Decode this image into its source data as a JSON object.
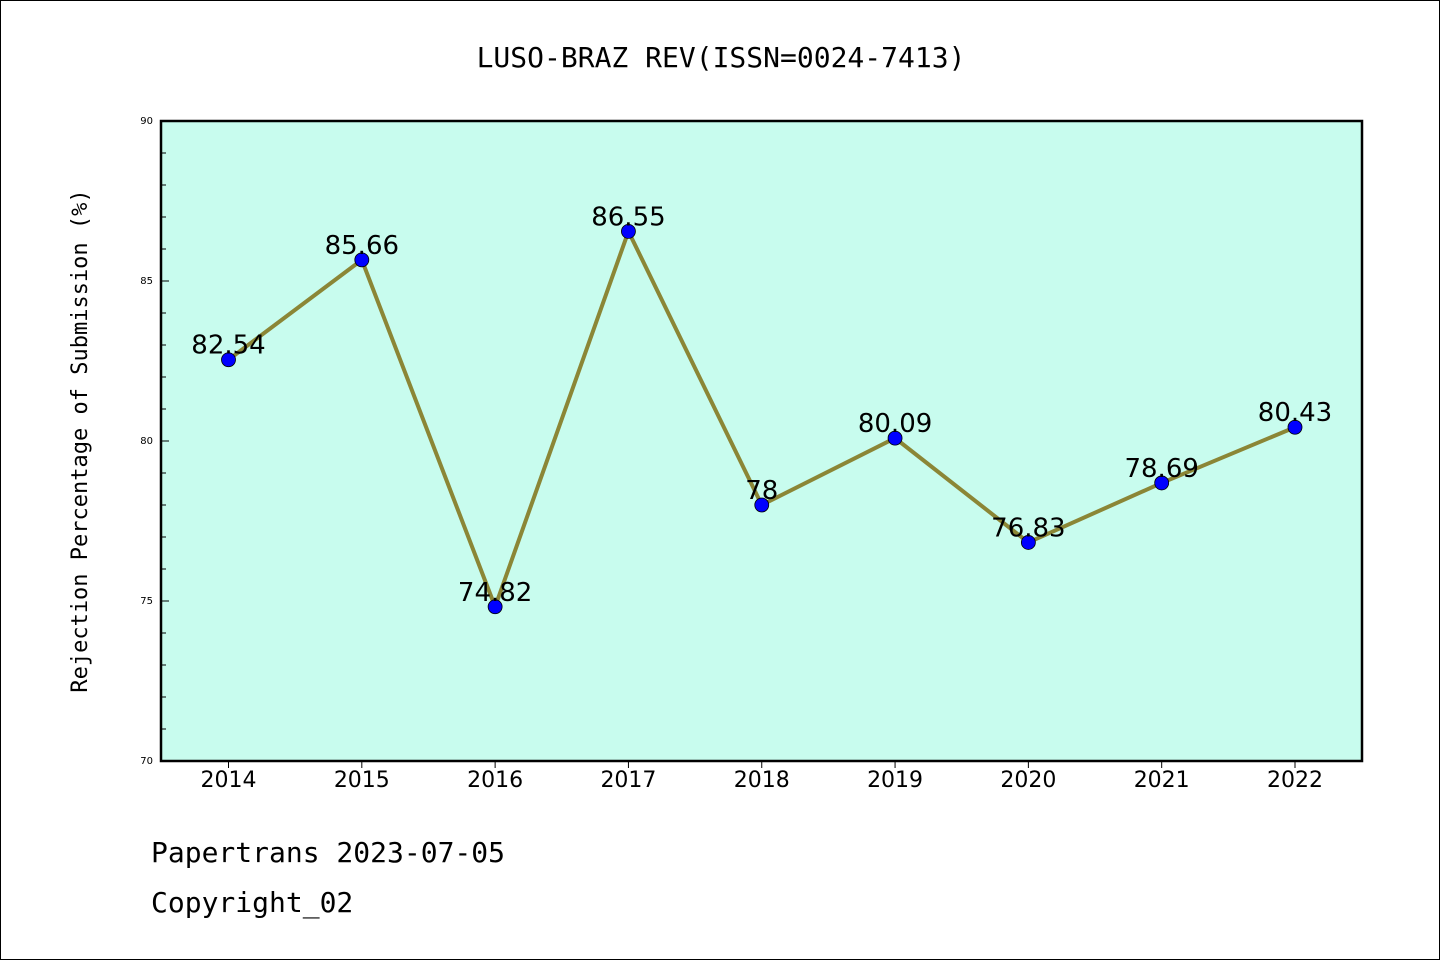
{
  "chart_data": {
    "type": "line",
    "title": "LUSO-BRAZ REV(ISSN=0024-7413)",
    "xlabel": "",
    "ylabel": "Rejection Percentage of Submission (%)",
    "categories": [
      "2014",
      "2015",
      "2016",
      "2017",
      "2018",
      "2019",
      "2020",
      "2021",
      "2022"
    ],
    "series": [
      {
        "values": [
          82.54,
          85.66,
          74.82,
          86.55,
          78,
          80.09,
          76.83,
          78.69,
          80.43
        ],
        "data_labels": [
          "82.54",
          "85.66",
          "74.82",
          "86.55",
          "78",
          "80.09",
          "76.83",
          "78.69",
          "80.43"
        ]
      }
    ],
    "ylim": [
      70,
      90
    ],
    "yticks": [
      70,
      75,
      80,
      85,
      90
    ],
    "ytick_labels": [
      "70",
      "75",
      "80",
      "85",
      "90"
    ],
    "grid": false,
    "colors": {
      "plot_background": "#c8fcee",
      "line": "#8b8636",
      "marker": "#0000ff"
    }
  },
  "footer": {
    "line1": "Papertrans 2023-07-05",
    "line2": "Copyright_02"
  }
}
